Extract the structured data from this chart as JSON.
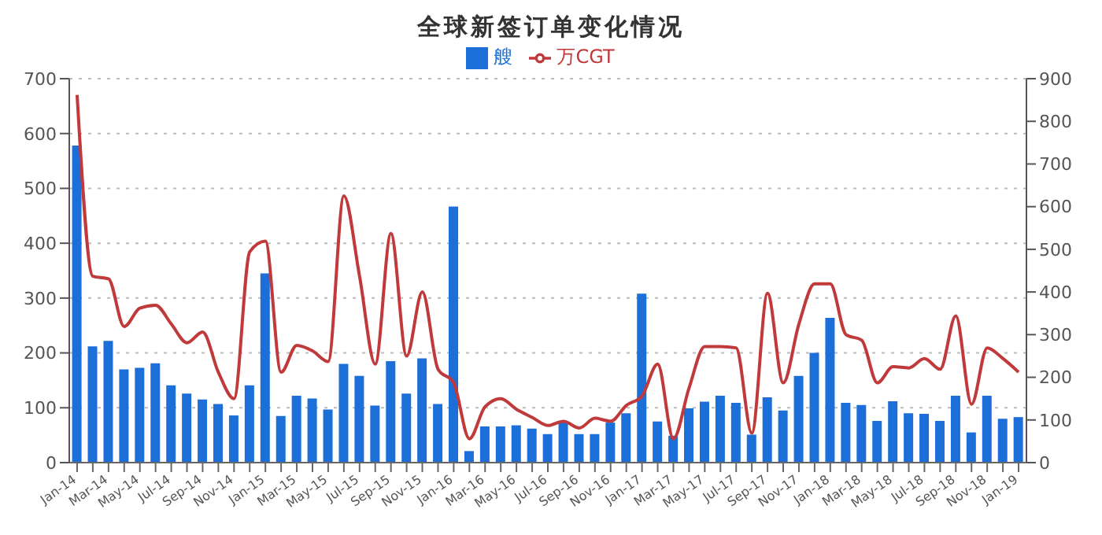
{
  "chart_data": {
    "type": "bar",
    "title": "全球新签订单变化情况",
    "categories": [
      "Jan-14",
      null,
      "Mar-14",
      null,
      "May-14",
      null,
      "Jul-14",
      null,
      "Sep-14",
      null,
      "Nov-14",
      null,
      "Jan-15",
      null,
      "Mar-15",
      null,
      "May-15",
      null,
      "Jul-15",
      null,
      "Sep-15",
      null,
      "Nov-15",
      null,
      "Jan-16",
      null,
      "Mar-16",
      null,
      "May-16",
      null,
      "Jul-16",
      null,
      "Sep-16",
      null,
      "Nov-16",
      null,
      "Jan-17",
      null,
      "Mar-17",
      null,
      "May-17",
      null,
      "Jul-17",
      null,
      "Sep-17",
      null,
      "Nov-17",
      null,
      "Jan-18",
      null,
      "Mar-18",
      null,
      "May-18",
      null,
      "Jul-18",
      null,
      "Sep-18",
      null,
      "Nov-18",
      null,
      "Jan-19"
    ],
    "series": [
      {
        "name": "艘",
        "color": "#1c6fd8",
        "values": [
          578,
          212,
          222,
          170,
          173,
          181,
          141,
          126,
          115,
          107,
          86,
          141,
          345,
          85,
          122,
          117,
          97,
          180,
          158,
          104,
          185,
          126,
          190,
          107,
          467,
          21,
          66,
          66,
          68,
          62,
          52,
          73,
          52,
          52,
          73,
          90,
          308,
          75,
          49,
          99,
          111,
          122,
          109,
          51,
          119,
          95,
          158,
          200,
          264,
          109,
          105,
          76,
          112,
          90,
          89,
          76,
          122,
          55,
          122,
          80,
          83
        ]
      },
      {
        "name": "万CGT",
        "type": "line",
        "axis": "y2",
        "color": "#c0393b",
        "values": [
          862,
          437,
          431,
          319,
          362,
          369,
          325,
          281,
          306,
          212,
          150,
          494,
          519,
          212,
          275,
          262,
          237,
          625,
          437,
          231,
          537,
          250,
          400,
          219,
          187,
          56,
          131,
          150,
          125,
          106,
          87,
          97,
          81,
          104,
          97,
          134,
          156,
          231,
          56,
          175,
          272,
          272,
          269,
          69,
          397,
          187,
          325,
          419,
          419,
          300,
          287,
          187,
          225,
          222,
          244,
          219,
          344,
          137,
          269,
          244,
          212
        ]
      }
    ],
    "ylim": [
      0,
      700
    ],
    "yticks": [
      0,
      100,
      200,
      300,
      400,
      500,
      600,
      700
    ],
    "y2lim": [
      0,
      900
    ],
    "y2ticks": [
      0,
      100,
      200,
      300,
      400,
      500,
      600,
      700,
      800,
      900
    ],
    "grid": "y",
    "legend": "top",
    "marker": "none",
    "line_style": "solid"
  }
}
